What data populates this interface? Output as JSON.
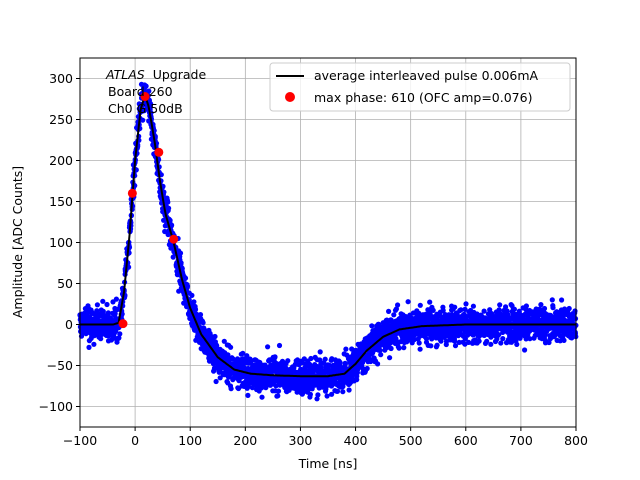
{
  "chart_data": {
    "type": "scatter",
    "xlabel": "Time [ns]",
    "ylabel": "Amplitude [ADC Counts]",
    "xlim": [
      -100,
      800
    ],
    "ylim": [
      -125,
      325
    ],
    "xticks": [
      -100,
      0,
      100,
      200,
      300,
      400,
      500,
      600,
      700,
      800
    ],
    "yticks": [
      -100,
      -50,
      0,
      50,
      100,
      150,
      200,
      250,
      300
    ],
    "grid": true,
    "legend_position": "upper-right",
    "annotation": {
      "experiment": "ATLAS",
      "label": "Upgrade",
      "line2": "Board 260",
      "line3": "Ch0 G 50dB"
    },
    "series": [
      {
        "name": "average interleaved pulse 0.006mA",
        "kind": "line",
        "color": "#000000",
        "x": [
          -100,
          -60,
          -40,
          -30,
          -20,
          -10,
          0,
          10,
          18,
          25,
          35,
          45,
          55,
          70,
          85,
          100,
          120,
          150,
          180,
          210,
          250,
          300,
          350,
          380,
          400,
          420,
          450,
          480,
          520,
          560,
          600,
          700,
          800
        ],
        "y": [
          0,
          0,
          0,
          2,
          40,
          110,
          200,
          262,
          280,
          265,
          225,
          175,
          135,
          100,
          55,
          20,
          -12,
          -40,
          -55,
          -60,
          -62,
          -63,
          -63,
          -60,
          -48,
          -32,
          -15,
          -6,
          -2,
          -1,
          0,
          0,
          0
        ]
      },
      {
        "name": "",
        "kind": "scatter-band",
        "color": "#0000ff",
        "noise": 12
      },
      {
        "name": "max phase: 610 (OFC amp=0.076)",
        "kind": "scatter",
        "color": "#ff0000",
        "x": [
          -22,
          -5,
          18,
          43,
          70
        ],
        "y": [
          1,
          160,
          278,
          210,
          104
        ]
      }
    ]
  }
}
